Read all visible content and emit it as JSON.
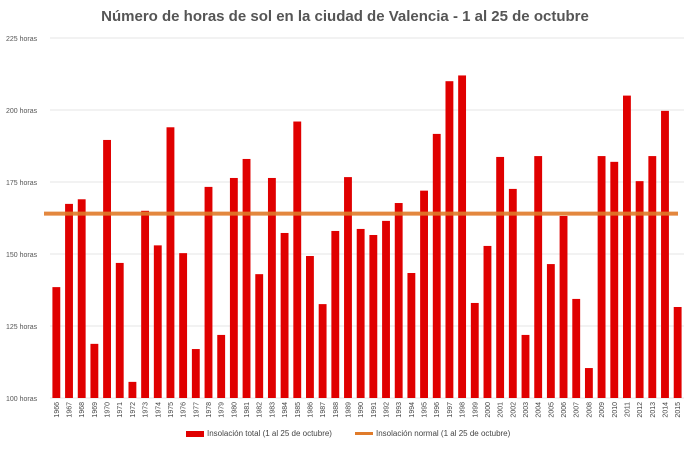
{
  "chart_data": {
    "type": "bar",
    "title": "Número de horas de sol en la ciudad de Valencia - 1 al 25 de octubre",
    "categories": [
      "1966",
      "1967",
      "1968",
      "1969",
      "1970",
      "1971",
      "1972",
      "1973",
      "1974",
      "1975",
      "1976",
      "1977",
      "1978",
      "1979",
      "1980",
      "1981",
      "1982",
      "1983",
      "1984",
      "1985",
      "1986",
      "1987",
      "1988",
      "1989",
      "1990",
      "1991",
      "1992",
      "1993",
      "1994",
      "1995",
      "1996",
      "1997",
      "1998",
      "1999",
      "2000",
      "2001",
      "2002",
      "2003",
      "2004",
      "2005",
      "2006",
      "2007",
      "2008",
      "2009",
      "2010",
      "2011",
      "2012",
      "2013",
      "2014",
      "2015"
    ],
    "series": [
      {
        "name": "Insolación total (1 al 25 de octubre)",
        "color": "#e00000",
        "values": [
          138.5,
          167.4,
          169,
          118.8,
          189.6,
          146.9,
          105.6,
          165,
          153,
          194,
          150.3,
          117,
          173.3,
          121.9,
          176.4,
          183,
          143,
          176.4,
          157.3,
          196,
          149.3,
          132.6,
          158,
          176.7,
          158.7,
          156.6,
          161.5,
          167.7,
          143.4,
          172,
          191.7,
          210,
          212,
          133,
          152.8,
          183.7,
          172.6,
          121.9,
          184,
          146.5,
          163.2,
          134.4,
          110.4,
          184,
          182,
          205,
          175.3,
          184,
          199.7,
          131.6
        ]
      },
      {
        "name": "Insolación normal (1 al 25 de octubre)",
        "color": "#e07b2a",
        "type": "hline",
        "value": 164
      }
    ],
    "yticks": [
      "100 horas",
      "125 horas",
      "150 horas",
      "175 horas",
      "200 horas",
      "225 horas"
    ],
    "ylim": [
      100,
      225
    ],
    "grid": true,
    "legend": "bottom"
  }
}
